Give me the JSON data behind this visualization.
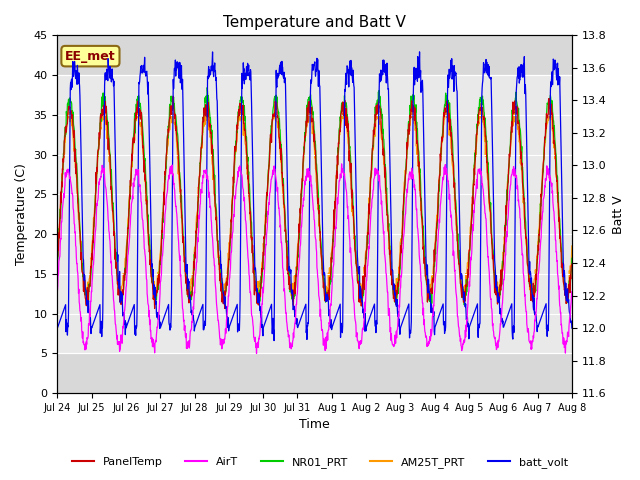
{
  "title": "Temperature and Batt V",
  "ylabel_left": "Temperature (C)",
  "ylabel_right": "Batt V",
  "xlabel": "Time",
  "ylim_left": [
    0,
    45
  ],
  "ylim_right": [
    11.6,
    13.8
  ],
  "xtick_labels": [
    "Jul 24",
    "Jul 25",
    "Jul 26",
    "Jul 27",
    "Jul 28",
    "Jul 29",
    "Jul 30",
    "Jul 31",
    "Aug 1",
    "Aug 2",
    "Aug 3",
    "Aug 4",
    "Aug 5",
    "Aug 6",
    "Aug 7",
    "Aug 8"
  ],
  "yticks_left": [
    0,
    5,
    10,
    15,
    20,
    25,
    30,
    35,
    40,
    45
  ],
  "yticks_right": [
    11.6,
    11.8,
    12.0,
    12.2,
    12.4,
    12.6,
    12.8,
    13.0,
    13.2,
    13.4,
    13.6,
    13.8
  ],
  "shaded_band": [
    5,
    40
  ],
  "annotation_text": "EE_met",
  "colors": {
    "PanelTemp": "#cc0000",
    "AirT": "#ff00ff",
    "NR01_PRT": "#00cc00",
    "AM25T_PRT": "#ff9900",
    "batt_volt": "#0000ee"
  },
  "legend_items": [
    "PanelTemp",
    "AirT",
    "NR01_PRT",
    "AM25T_PRT",
    "batt_volt"
  ],
  "plot_bg": "#d8d8d8",
  "n_days": 15,
  "pts_per_day": 96,
  "batt_scale_min": 11.6,
  "batt_scale_max": 13.8,
  "temp_scale_min": 0,
  "temp_scale_max": 45
}
